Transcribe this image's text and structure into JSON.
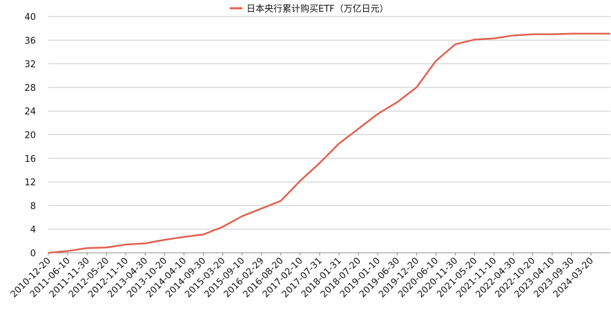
{
  "chart_data": {
    "type": "line",
    "categories": [
      "2010-12-20",
      "2011-06-10",
      "2011-11-30",
      "2012-05-20",
      "2012-11-10",
      "2013-04-30",
      "2013-10-20",
      "2014-04-10",
      "2014-09-30",
      "2015-03-20",
      "2015-09-10",
      "2016-02-29",
      "2016-08-20",
      "2017-02-10",
      "2017-07-31",
      "2018-01-31",
      "2018-07-20",
      "2019-01-10",
      "2019-06-30",
      "2019-12-20",
      "2020-06-10",
      "2020-11-30",
      "2021-05-20",
      "2021-11-10",
      "2022-04-30",
      "2022-10-20",
      "2023-04-10",
      "2023-09-30",
      "2024-03-20",
      null
    ],
    "series": [
      {
        "name": "日本央行累计购买ETF（万亿日元）",
        "color": "#e0604e",
        "values": [
          0,
          0.3,
          0.8,
          0.9,
          1.4,
          1.6,
          2.2,
          2.7,
          3.1,
          4.4,
          6.2,
          7.5,
          8.8,
          12.2,
          15.2,
          18.5,
          21.0,
          23.5,
          25.5,
          28.0,
          32.5,
          35.3,
          36.1,
          36.3,
          36.8,
          37.0,
          37.0,
          37.1,
          37.1,
          37.1
        ]
      }
    ],
    "ylim": [
      0,
      40
    ],
    "yticks": [
      0,
      4,
      8,
      12,
      16,
      20,
      24,
      28,
      32,
      36,
      40
    ],
    "grid": true,
    "legend": "top"
  }
}
